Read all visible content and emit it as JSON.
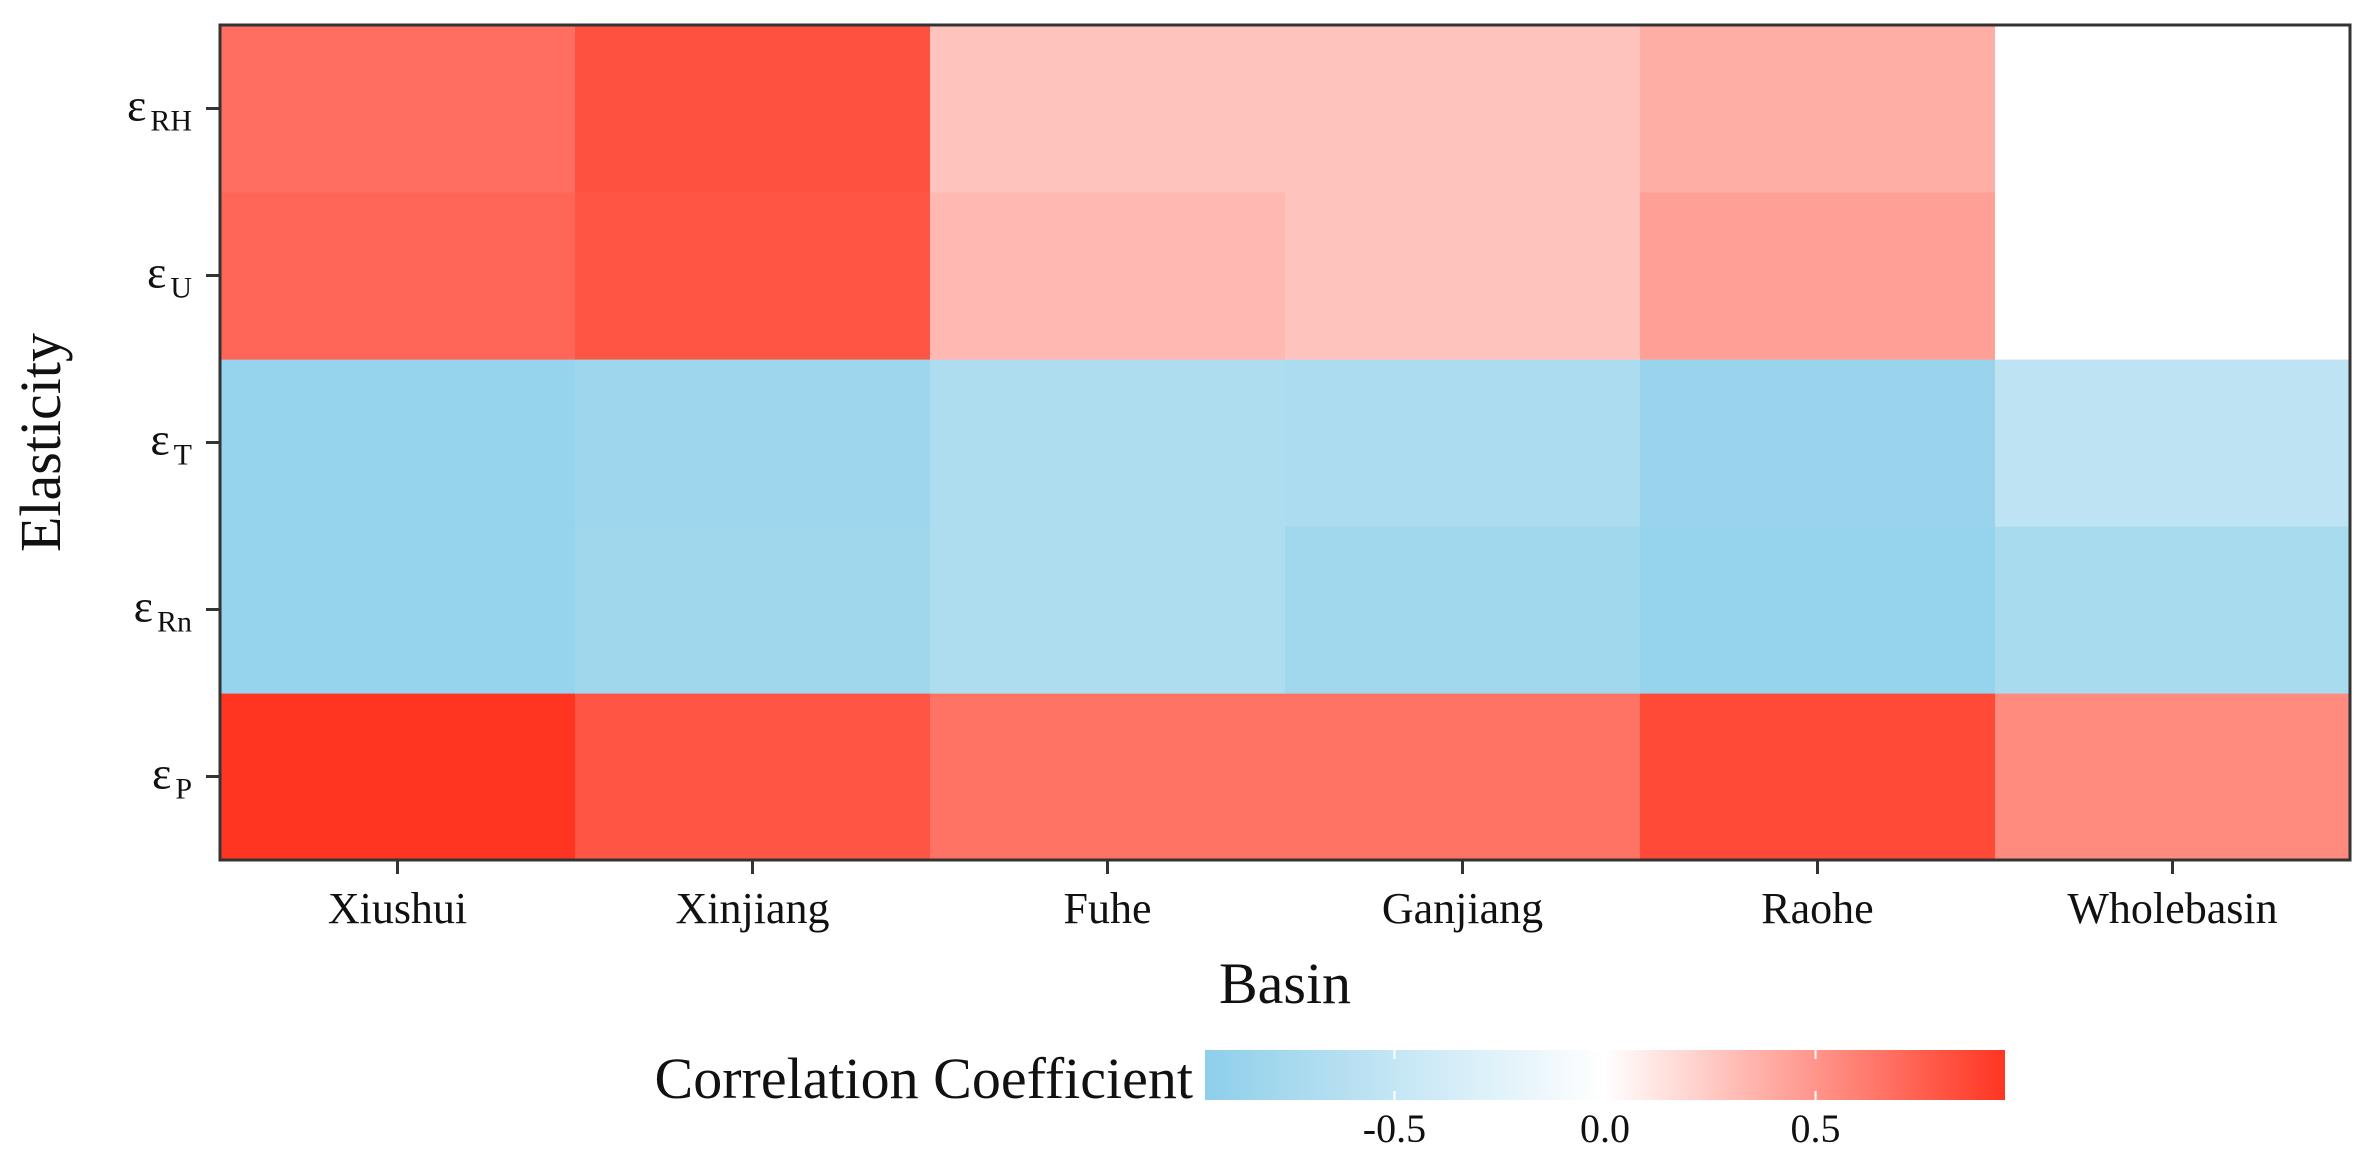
{
  "chart_data": {
    "type": "heatmap",
    "xlabel": "Basin",
    "ylabel": "Elasticity",
    "x_categories": [
      "Xiushui",
      "Xinjiang",
      "Fuhe",
      "Ganjiang",
      "Raohe",
      "Wholebasin"
    ],
    "y_categories": [
      {
        "symbol": "ε",
        "subscript": "P"
      },
      {
        "symbol": "ε",
        "subscript": "Rn"
      },
      {
        "symbol": "ε",
        "subscript": "T"
      },
      {
        "symbol": "ε",
        "subscript": "U"
      },
      {
        "symbol": "ε",
        "subscript": "RH"
      }
    ],
    "values": [
      [
        0.95,
        0.8,
        0.66,
        0.66,
        0.85,
        0.55
      ],
      [
        -0.88,
        -0.8,
        -0.68,
        -0.78,
        -0.88,
        -0.72
      ],
      [
        -0.88,
        -0.82,
        -0.68,
        -0.7,
        -0.86,
        -0.55
      ],
      [
        0.72,
        0.8,
        0.33,
        0.28,
        0.45,
        null
      ],
      [
        0.68,
        0.82,
        0.28,
        0.28,
        0.38,
        null
      ]
    ],
    "color_scale": {
      "low": "#8ecfea",
      "mid": "#ffffff",
      "high": "#ff3521",
      "min": -0.95,
      "max": 0.95
    },
    "legend": {
      "title": "Correlation Coefficient",
      "ticks": [
        -0.5,
        0.0,
        0.5
      ],
      "tick_labels": [
        "-0.5",
        "0.0",
        "0.5"
      ],
      "position": "bottom"
    },
    "grid": false
  }
}
